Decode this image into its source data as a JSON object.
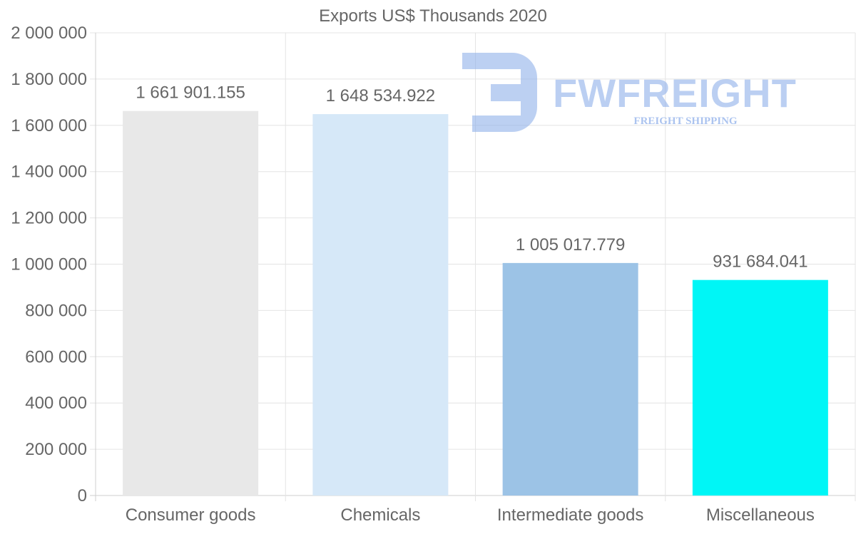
{
  "chart_data": {
    "type": "bar",
    "title": "Exports US$ Thousands 2020",
    "categories": [
      "Consumer goods",
      "Chemicals",
      "Intermediate goods",
      "Miscellaneous"
    ],
    "values": [
      1661901.155,
      1648534.922,
      1005017.779,
      931684.041
    ],
    "value_labels": [
      "1 661 901.155",
      "1 648 534.922",
      "1 005 017.779",
      "931 684.041"
    ],
    "bar_colors": [
      "#e8e8e8",
      "#d6e8f8",
      "#9cc3e6",
      "#00f6f6"
    ],
    "ylim": [
      0,
      2000000
    ],
    "yticks": [
      0,
      200000,
      400000,
      600000,
      800000,
      1000000,
      1200000,
      1400000,
      1600000,
      1800000,
      2000000
    ],
    "ytick_labels": [
      "0",
      "200 000",
      "400 000",
      "600 000",
      "800 000",
      "1 000 000",
      "1 200 000",
      "1 400 000",
      "1 600 000",
      "1 800 000",
      "2 000 000"
    ],
    "xlabel": "",
    "ylabel": "",
    "grid": true
  },
  "watermark": {
    "brand": "FWFREIGHT",
    "tagline": "FREIGHT SHIPPING",
    "color": "#8fb0ea"
  }
}
